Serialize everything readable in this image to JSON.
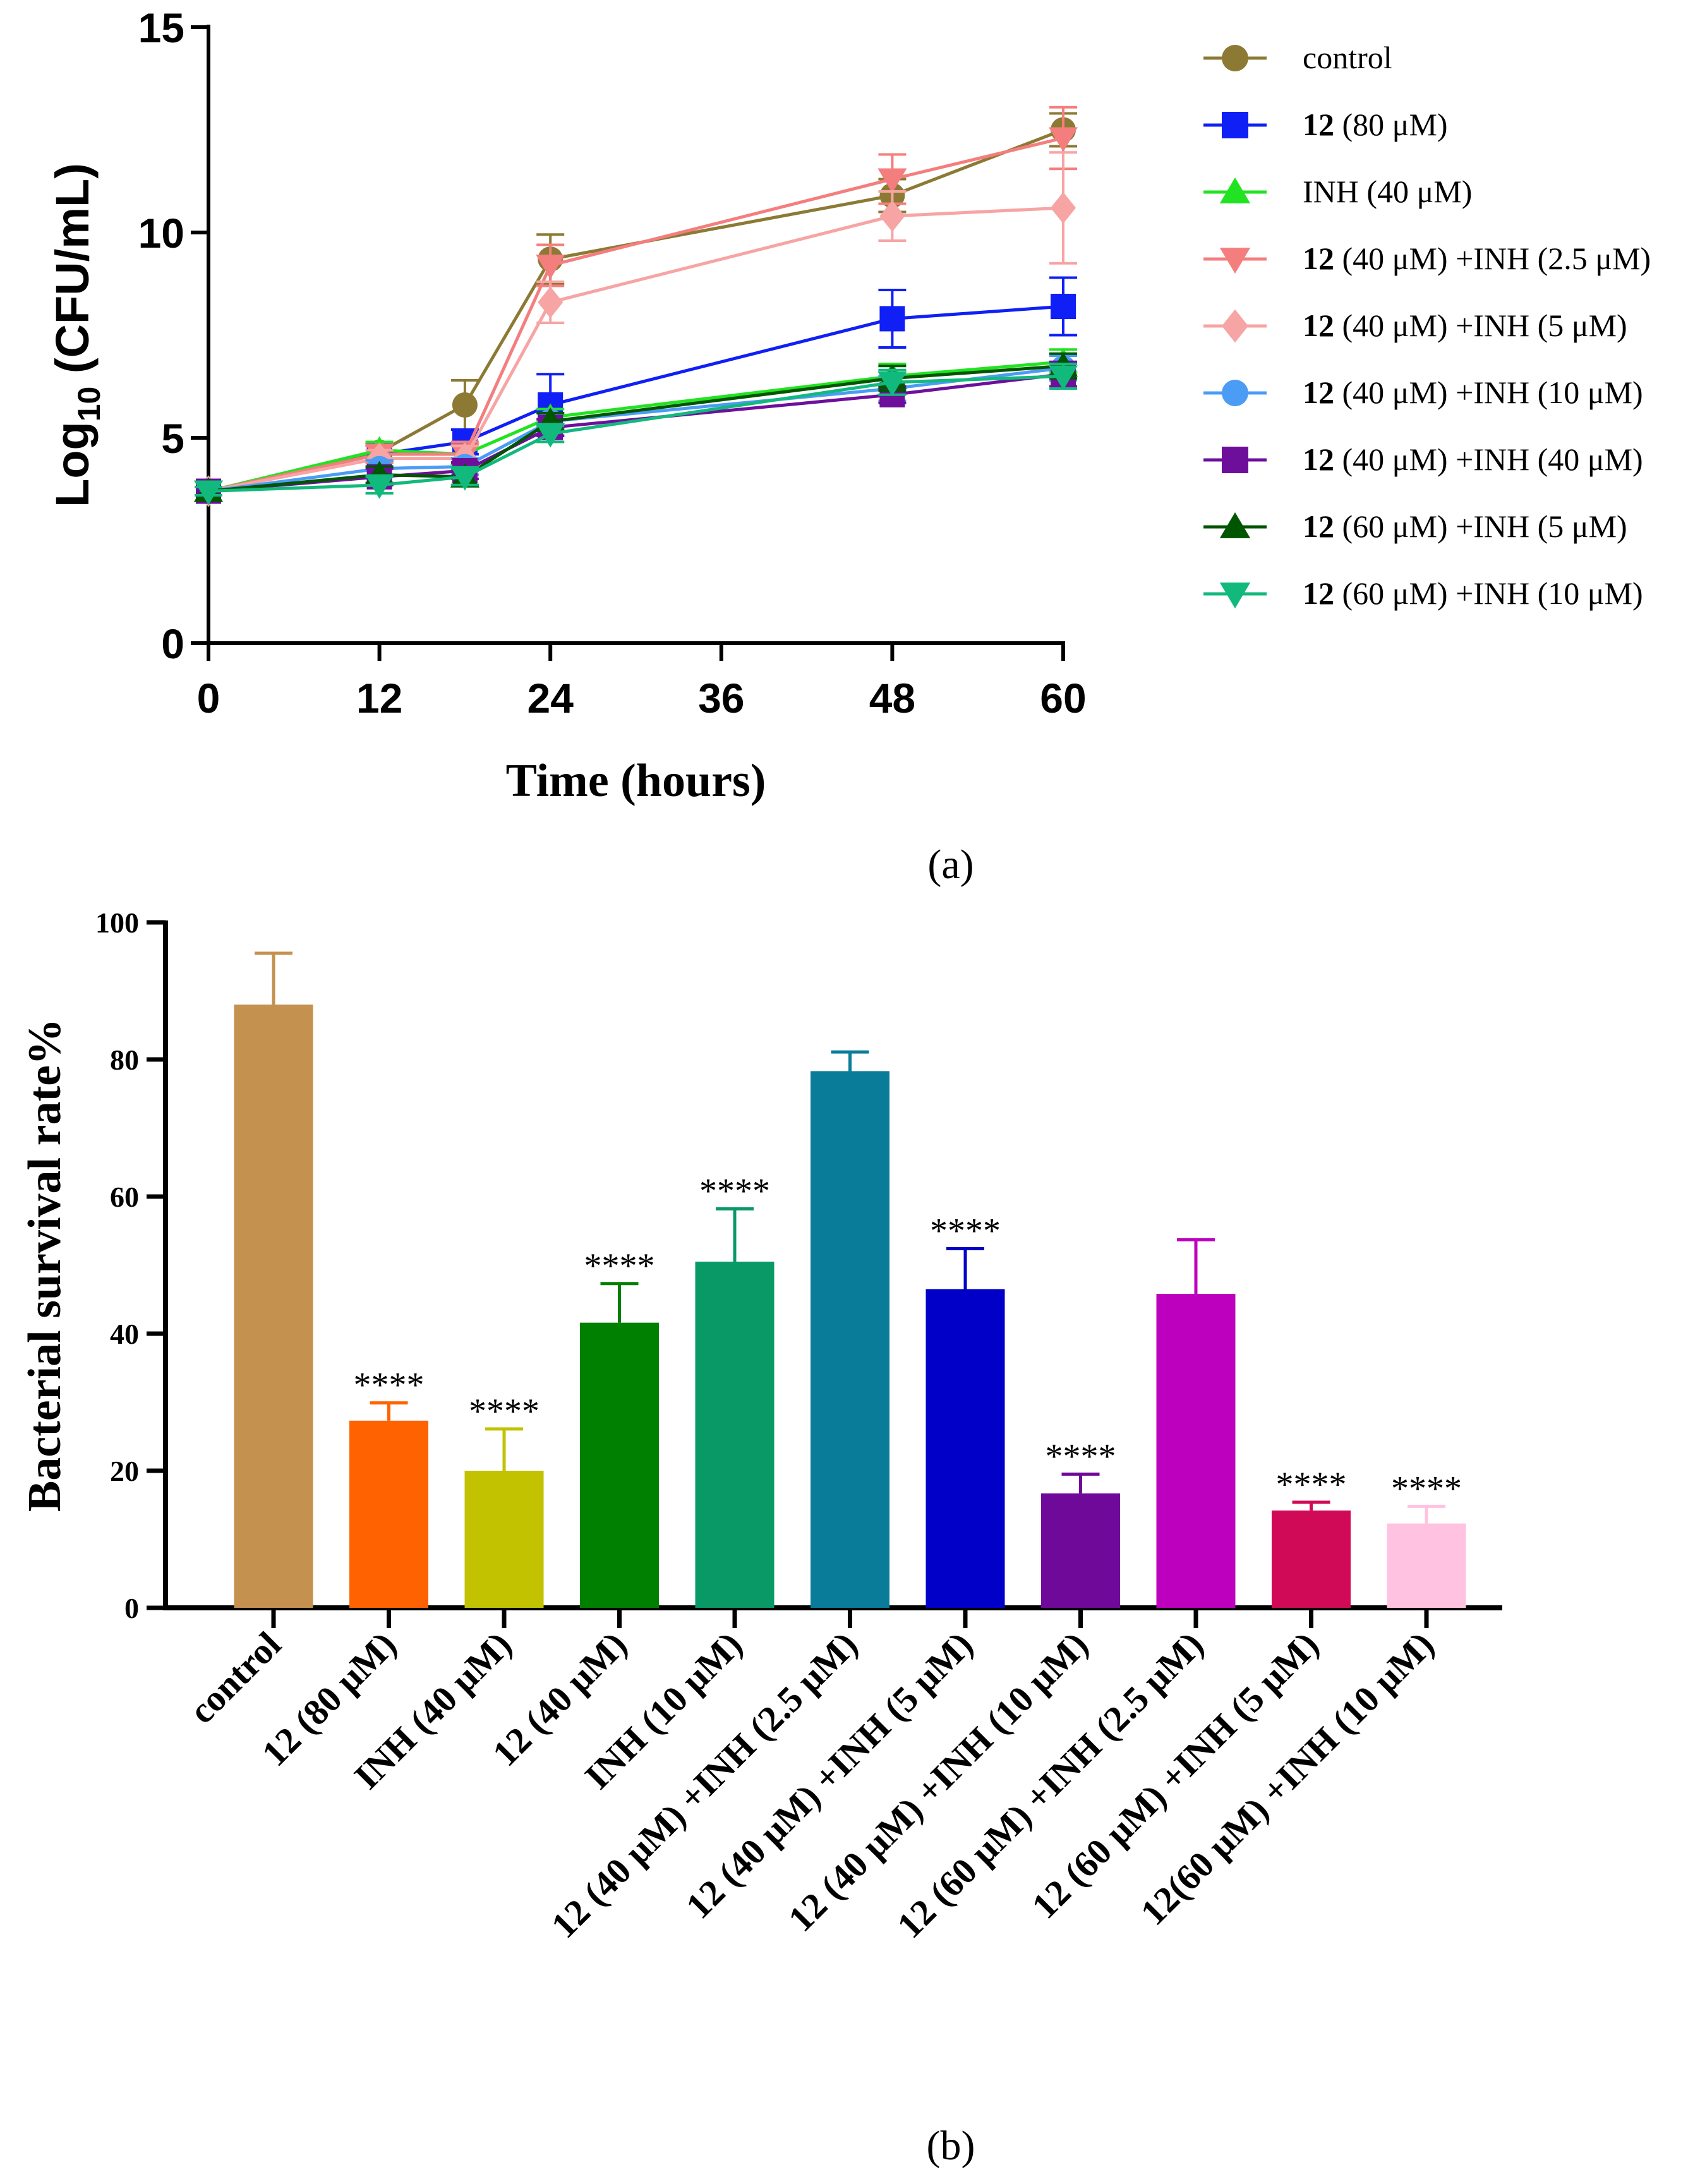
{
  "chart_data": [
    {
      "id": "a",
      "type": "line",
      "panel_label": "a",
      "xlabel": "Time (hours)",
      "ylabel_main": "Log",
      "ylabel_sub": "10",
      "ylabel_rest": " (CFU/mL)",
      "xlim": [
        0,
        60
      ],
      "ylim": [
        0,
        15
      ],
      "xticks": [
        0,
        12,
        24,
        36,
        48,
        60
      ],
      "yticks": [
        0,
        5,
        10,
        15
      ],
      "x": [
        0,
        12,
        18,
        24,
        48,
        60
      ],
      "legend_position": "right",
      "series": [
        {
          "name": "control",
          "legend_bold": "",
          "legend_rest": "control",
          "color": "#8c7a34",
          "marker": "circle",
          "values": [
            3.7,
            4.65,
            5.8,
            9.35,
            10.9,
            12.5
          ],
          "errors": [
            0.1,
            0.2,
            0.6,
            0.6,
            0.4,
            0.4
          ]
        },
        {
          "name": "12 (80 μM)",
          "legend_bold": "12",
          "legend_rest": " (80 μM)",
          "color": "#0f1ff5",
          "marker": "square",
          "values": [
            3.7,
            4.6,
            4.9,
            5.8,
            7.9,
            8.2
          ],
          "errors": [
            0.1,
            0.2,
            0.3,
            0.75,
            0.7,
            0.7
          ]
        },
        {
          "name": "INH (40 μM)",
          "legend_bold": "",
          "legend_rest": "INH (40 μM)",
          "color": "#22e322",
          "marker": "triangle-up",
          "values": [
            3.7,
            4.7,
            4.6,
            5.5,
            6.5,
            6.85
          ],
          "errors": [
            0.1,
            0.2,
            0.2,
            0.2,
            0.3,
            0.3
          ]
        },
        {
          "name": "12 (40 μM) +INH (2.5 μM)",
          "legend_bold": "12",
          "legend_rest": " (40 μM) +INH (2.5 μM)",
          "color": "#f47e7e",
          "marker": "triangle-down",
          "values": [
            3.7,
            4.6,
            4.6,
            9.2,
            11.3,
            12.3
          ],
          "errors": [
            0.1,
            0.2,
            0.3,
            0.5,
            0.6,
            0.75
          ]
        },
        {
          "name": "12 (40 μM) +INH (5 μM)",
          "legend_bold": "12",
          "legend_rest": " (40 μM) +INH (5 μM)",
          "color": "#f7a4a4",
          "marker": "diamond",
          "values": [
            3.7,
            4.5,
            4.5,
            8.3,
            10.4,
            10.6
          ],
          "errors": [
            0.1,
            0.2,
            0.3,
            0.5,
            0.6,
            1.35
          ]
        },
        {
          "name": "12 (40 μM) +INH (10 μM)",
          "legend_bold": "12",
          "legend_rest": " (40 μM) +INH (10 μM)",
          "color": "#4a9cf5",
          "marker": "circle",
          "values": [
            3.7,
            4.25,
            4.3,
            5.4,
            6.2,
            6.7
          ],
          "errors": [
            0.1,
            0.2,
            0.2,
            0.2,
            0.3,
            0.3
          ]
        },
        {
          "name": "12 (40 μM) +INH (40 μM)",
          "legend_bold": "12",
          "legend_rest": " (40 μM) +INH (40 μM)",
          "color": "#6e0f9c",
          "marker": "square",
          "values": [
            3.7,
            4.05,
            4.2,
            5.25,
            6.05,
            6.55
          ],
          "errors": [
            0.1,
            0.2,
            0.2,
            0.2,
            0.2,
            0.3
          ]
        },
        {
          "name": "12 (60 μM) +INH (5 μM)",
          "legend_bold": "12",
          "legend_rest": " (60 μM) +INH (5 μM)",
          "color": "#005500",
          "marker": "triangle-up",
          "values": [
            3.7,
            4.1,
            4.05,
            5.4,
            6.45,
            6.75
          ],
          "errors": [
            0.1,
            0.2,
            0.2,
            0.2,
            0.3,
            0.3
          ]
        },
        {
          "name": "12 (60 μM) +INH (10 μM)",
          "legend_bold": "12",
          "legend_rest": " (60 μM) +INH (10 μM)",
          "color": "#12b97c",
          "marker": "triangle-down",
          "values": [
            3.7,
            3.85,
            4.05,
            5.1,
            6.35,
            6.5
          ],
          "errors": [
            0.1,
            0.2,
            0.2,
            0.2,
            0.3,
            0.3
          ]
        }
      ]
    },
    {
      "id": "b",
      "type": "bar",
      "panel_label": "b",
      "ylabel": "Bacterial survival rate%",
      "xlabel": "",
      "ylim": [
        0,
        100
      ],
      "yticks": [
        0,
        20,
        40,
        60,
        80,
        100
      ],
      "categories": [
        "control",
        "12 (80 μM)",
        "INH (40 μM)",
        "12 (40 μM)",
        "INH (10 μM)",
        "12 (40 μM) +INH (2.5 μM)",
        "12 (40 μM) +INH (5 μM)",
        "12 (40 μM) +INH (10 μM)",
        "12 (60 μM) +INH (2.5 μM)",
        "12 (60 μM) +INH (5 μM)",
        "12(60 μM) +INH (10 μM)"
      ],
      "values": [
        88,
        27.3,
        20,
        41.6,
        50.5,
        78.3,
        46.5,
        16.7,
        45.8,
        14.2,
        12.3
      ],
      "errors": [
        7.5,
        2.6,
        6.1,
        5.7,
        7.7,
        2.8,
        5.9,
        2.8,
        7.9,
        1.2,
        2.5
      ],
      "colors": [
        "#c4914e",
        "#ff6201",
        "#c2c200",
        "#008000",
        "#089966",
        "#097c99",
        "#0000c8",
        "#6f0999",
        "#bd00bd",
        "#d10a58",
        "#ffc2e0"
      ],
      "annotations": [
        "",
        "****",
        "****",
        "****",
        "****",
        "",
        "****",
        "****",
        "",
        "****",
        "****"
      ]
    }
  ]
}
